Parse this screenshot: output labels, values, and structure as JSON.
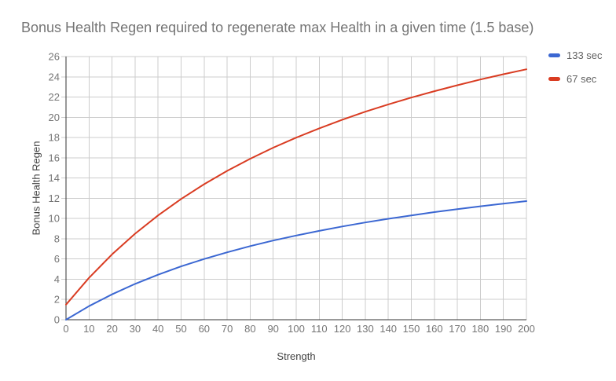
{
  "chart_data": {
    "type": "line",
    "title": "Bonus Health Regen required to regenerate max Health in a given time (1.5 base)",
    "xlabel": "Strength",
    "ylabel": "Bonus Health Regen",
    "x": [
      0,
      10,
      20,
      30,
      40,
      50,
      60,
      70,
      80,
      90,
      100,
      110,
      120,
      130,
      140,
      150,
      160,
      170,
      180,
      190,
      200
    ],
    "series": [
      {
        "name": "133 sec",
        "color": "#3B67D2",
        "values": [
          0,
          1.34,
          2.51,
          3.54,
          4.45,
          5.27,
          6.0,
          6.66,
          7.27,
          7.82,
          8.32,
          8.78,
          9.21,
          9.61,
          9.97,
          10.31,
          10.63,
          10.93,
          11.21,
          11.47,
          11.72
        ]
      },
      {
        "name": "67 sec",
        "color": "#D93C22",
        "values": [
          1.49,
          4.14,
          6.46,
          8.5,
          10.31,
          11.93,
          13.39,
          14.71,
          15.9,
          17.0,
          17.99,
          18.91,
          19.76,
          20.55,
          21.27,
          21.95,
          22.58,
          23.17,
          23.73,
          24.25,
          24.74
        ]
      }
    ],
    "xlim": [
      0,
      200
    ],
    "ylim": [
      0,
      26
    ],
    "x_ticks": [
      "0",
      "10",
      "20",
      "30",
      "40",
      "50",
      "60",
      "70",
      "80",
      "90",
      "100",
      "110",
      "120",
      "130",
      "140",
      "150",
      "160",
      "170",
      "180",
      "190",
      "200"
    ],
    "y_ticks": [
      "0",
      "2",
      "4",
      "6",
      "8",
      "10",
      "12",
      "14",
      "16",
      "18",
      "20",
      "22",
      "24",
      "26"
    ],
    "grid": true,
    "legend_position": "right"
  },
  "style": {
    "background": "#FFFFFF",
    "grid_color": "#CCCCCC",
    "axis_color": "#333333",
    "title_color": "#757575",
    "tick_color": "#757575",
    "axis_title_color": "#424242",
    "legend_text_color": "#616161"
  }
}
